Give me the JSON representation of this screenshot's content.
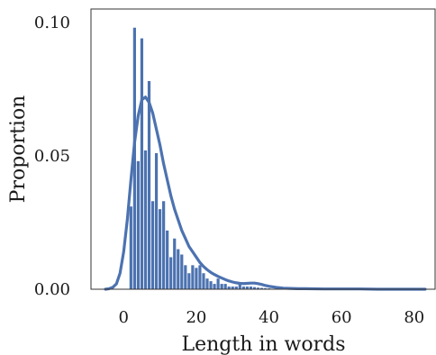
{
  "chart_data": {
    "type": "bar",
    "title": "",
    "xlabel": "Length in words",
    "ylabel": "Proportion",
    "xlim": [
      -9,
      86
    ],
    "ylim": [
      0,
      0.105
    ],
    "xticks": [
      0,
      20,
      40,
      60,
      80
    ],
    "xtick_labels": [
      "0",
      "20",
      "40",
      "60",
      "80"
    ],
    "yticks": [
      0.0,
      0.05,
      0.1
    ],
    "ytick_labels": [
      "0.00",
      "0.05",
      "0.10"
    ],
    "grid": false,
    "legend": "none",
    "color": "#4c72b0",
    "histogram": {
      "bin_centers": [
        2,
        3,
        4,
        5,
        6,
        7,
        8,
        9,
        10,
        11,
        12,
        13,
        14,
        15,
        16,
        17,
        18,
        19,
        20,
        21,
        22,
        23,
        24,
        25,
        26,
        27,
        28,
        29,
        30,
        31,
        32,
        33,
        34,
        35,
        36,
        37,
        38,
        39,
        40,
        42,
        44,
        46
      ],
      "values": [
        0.031,
        0.098,
        0.048,
        0.094,
        0.052,
        0.078,
        0.033,
        0.051,
        0.03,
        0.033,
        0.022,
        0.012,
        0.019,
        0.015,
        0.013,
        0.009,
        0.006,
        0.009,
        0.008,
        0.009,
        0.006,
        0.004,
        0.003,
        0.002,
        0.004,
        0.002,
        0.002,
        0.001,
        0.001,
        0.001,
        0.002,
        0.001,
        0.001,
        0.001,
        0.0008,
        0.0006,
        0.0005,
        0.0004,
        0.0003,
        0.0002,
        0.0002,
        0.0001
      ]
    },
    "kde": {
      "x": [
        -5,
        -4,
        -3,
        -2,
        -1,
        0,
        1,
        2,
        3,
        4,
        5,
        6,
        7,
        8,
        9,
        10,
        11,
        12,
        13,
        14,
        15,
        16,
        17,
        18,
        19,
        20,
        21,
        22,
        23,
        24,
        25,
        26,
        27,
        28,
        29,
        30,
        31,
        32,
        33,
        34,
        35,
        36,
        37,
        38,
        39,
        40,
        42,
        44,
        46,
        48,
        50,
        55,
        60,
        65,
        70,
        75,
        80,
        83
      ],
      "y": [
        0.0,
        0.0002,
        0.0007,
        0.002,
        0.006,
        0.014,
        0.026,
        0.041,
        0.055,
        0.065,
        0.071,
        0.072,
        0.07,
        0.066,
        0.06,
        0.054,
        0.047,
        0.041,
        0.035,
        0.03,
        0.026,
        0.022,
        0.019,
        0.016,
        0.014,
        0.012,
        0.01,
        0.0085,
        0.0073,
        0.0063,
        0.0055,
        0.0048,
        0.0042,
        0.0036,
        0.0031,
        0.0027,
        0.0024,
        0.0022,
        0.0021,
        0.0022,
        0.0023,
        0.0023,
        0.0021,
        0.0018,
        0.0014,
        0.0011,
        0.0007,
        0.0004,
        0.0003,
        0.0002,
        0.0002,
        0.0001,
        0.0001,
        0.0001,
        0.0,
        0.0,
        0.0,
        0.0
      ]
    }
  }
}
